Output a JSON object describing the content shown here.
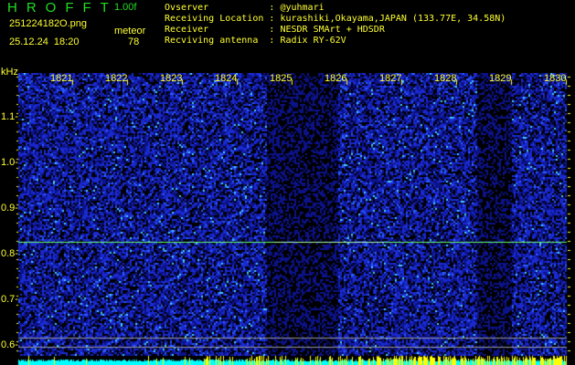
{
  "header": {
    "app_title": "HROFFT",
    "version": "1.00f",
    "filename": "251224182O.png",
    "datetime": "25.12.24  18:20",
    "mode_label": "meteor",
    "count": "78"
  },
  "info": [
    {
      "label": "Ovserver          ",
      "value": ": @yuhmari"
    },
    {
      "label": "Receiving Location",
      "value": ": kurashiki,Okayama,JAPAN (133.77E, 34.58N)"
    },
    {
      "label": "Receiver          ",
      "value": ": NESDR SMArt + HDSDR"
    },
    {
      "label": "Recviving antenna ",
      "value": ": Radix RY-62V"
    }
  ],
  "axis": {
    "y_unit": "kHz",
    "y_ticks": [
      "1.1",
      "1.0",
      "0.9",
      "0.8",
      "0.7",
      "0.6"
    ],
    "x_ticks": [
      "1821",
      "1822",
      "1823",
      "1824",
      "1825",
      "1826",
      "1827",
      "1828",
      "1829",
      "1830"
    ]
  },
  "colors": {
    "text": "#ffff33",
    "title": "#22dd22",
    "signal": "#66ff66",
    "background": "#000000",
    "noise": "#1a2acc",
    "histogram": "#00ffff"
  },
  "signal_line_khz": 0.83
}
